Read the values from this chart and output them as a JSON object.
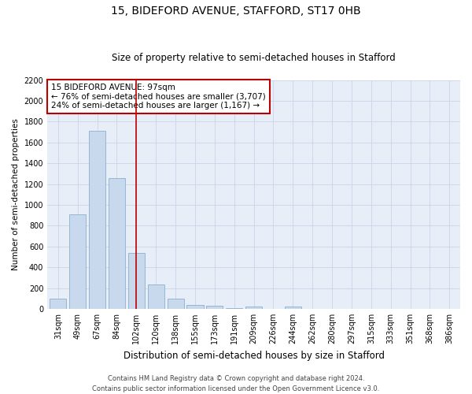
{
  "title": "15, BIDEFORD AVENUE, STAFFORD, ST17 0HB",
  "subtitle": "Size of property relative to semi-detached houses in Stafford",
  "xlabel": "Distribution of semi-detached houses by size in Stafford",
  "ylabel": "Number of semi-detached properties",
  "categories": [
    "31sqm",
    "49sqm",
    "67sqm",
    "84sqm",
    "102sqm",
    "120sqm",
    "138sqm",
    "155sqm",
    "173sqm",
    "191sqm",
    "209sqm",
    "226sqm",
    "244sqm",
    "262sqm",
    "280sqm",
    "297sqm",
    "315sqm",
    "333sqm",
    "351sqm",
    "368sqm",
    "386sqm"
  ],
  "values": [
    100,
    910,
    1710,
    1260,
    540,
    235,
    100,
    40,
    30,
    10,
    20,
    0,
    20,
    0,
    0,
    0,
    0,
    0,
    0,
    0,
    0
  ],
  "bar_color": "#c8d8ed",
  "bar_edge_color": "#8ab0d0",
  "grid_color": "#c8d4e8",
  "background_color": "#e8eef8",
  "annotation_box_color": "#ffffff",
  "annotation_box_edge_color": "#bb0000",
  "property_line_color": "#bb0000",
  "property_index": 4,
  "property_label": "15 BIDEFORD AVENUE: 97sqm",
  "annotation_line1": "← 76% of semi-detached houses are smaller (3,707)",
  "annotation_line2": "24% of semi-detached houses are larger (1,167) →",
  "ylim": [
    0,
    2200
  ],
  "yticks": [
    0,
    200,
    400,
    600,
    800,
    1000,
    1200,
    1400,
    1600,
    1800,
    2000,
    2200
  ],
  "footer1": "Contains HM Land Registry data © Crown copyright and database right 2024.",
  "footer2": "Contains public sector information licensed under the Open Government Licence v3.0.",
  "title_fontsize": 10,
  "subtitle_fontsize": 8.5,
  "xlabel_fontsize": 8.5,
  "ylabel_fontsize": 7.5,
  "tick_fontsize": 7,
  "annotation_fontsize": 7.5,
  "footer_fontsize": 6
}
